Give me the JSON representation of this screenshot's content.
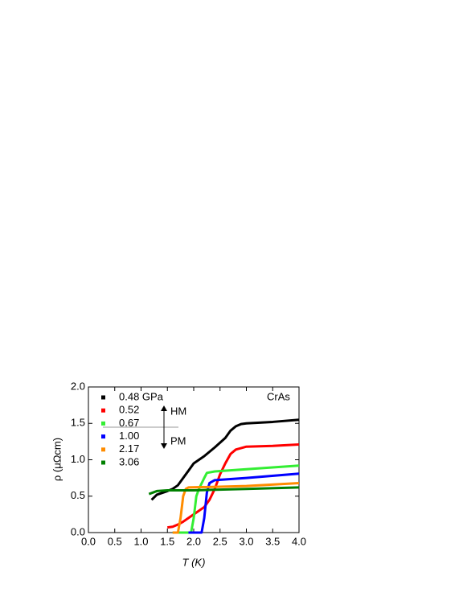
{
  "chart_data": {
    "type": "line",
    "xlabel": "T (K)",
    "ylabel": "ρ (μΩcm)",
    "annotations": [
      "CrAs",
      "HM",
      "PM"
    ],
    "xlim": [
      0,
      4
    ],
    "ylim": [
      0,
      2
    ],
    "xticks": [
      {
        "value": 0,
        "label": "0.0"
      },
      0.5,
      {
        "value": 1,
        "label": "1.0"
      },
      1.5,
      {
        "value": 2,
        "label": "2.0"
      },
      2.5,
      {
        "value": 3,
        "label": "3.0"
      },
      3.5,
      {
        "value": 4,
        "label": "4.0"
      }
    ],
    "yticks": [
      {
        "value": 0,
        "label": "0.0"
      },
      0.5,
      {
        "value": 1,
        "label": "1.0"
      },
      1.5,
      {
        "value": 2,
        "label": "2.0"
      }
    ],
    "legend": "upper left",
    "series": [
      {
        "name": "0.48 GPa",
        "color": "#000000",
        "x": [
          1.2,
          1.3,
          1.5,
          1.6,
          1.7,
          1.8,
          1.9,
          2.0,
          2.2,
          2.4,
          2.6,
          2.7,
          2.8,
          2.9,
          3.0,
          3.5,
          4.0
        ],
        "values": [
          0.45,
          0.52,
          0.57,
          0.6,
          0.65,
          0.75,
          0.85,
          0.95,
          1.05,
          1.17,
          1.3,
          1.4,
          1.46,
          1.49,
          1.5,
          1.52,
          1.55
        ]
      },
      {
        "name": "0.52",
        "color": "#ff0000",
        "x": [
          1.5,
          1.6,
          1.7,
          1.8,
          1.9,
          2.0,
          2.1,
          2.2,
          2.3,
          2.4,
          2.5,
          2.6,
          2.7,
          2.8,
          3.0,
          3.5,
          4.0
        ],
        "values": [
          0.07,
          0.08,
          0.11,
          0.15,
          0.2,
          0.25,
          0.3,
          0.35,
          0.45,
          0.6,
          0.8,
          0.95,
          1.08,
          1.14,
          1.18,
          1.19,
          1.21
        ]
      },
      {
        "name": "0.67",
        "color": "#33ee33",
        "x": [
          1.6,
          1.95,
          2.0,
          2.05,
          2.1,
          2.2,
          2.25,
          2.4,
          3.0,
          4.0
        ],
        "values": [
          0,
          0,
          0.2,
          0.5,
          0.6,
          0.75,
          0.82,
          0.84,
          0.87,
          0.92
        ]
      },
      {
        "name": "1.00",
        "color": "#0000ff",
        "x": [
          1.9,
          2.15,
          2.2,
          2.25,
          2.3,
          2.4,
          3.0,
          4.0
        ],
        "values": [
          0,
          0,
          0.2,
          0.55,
          0.68,
          0.72,
          0.75,
          0.81
        ]
      },
      {
        "name": "2.17",
        "color": "#ff8c00",
        "x": [
          1.6,
          1.7,
          1.75,
          1.8,
          1.85,
          1.9,
          2.5,
          3.0,
          4.0
        ],
        "values": [
          0,
          0,
          0.2,
          0.5,
          0.6,
          0.62,
          0.63,
          0.64,
          0.68
        ]
      },
      {
        "name": "3.06",
        "color": "#008000",
        "x": [
          1.15,
          1.3,
          1.5,
          2.0,
          3.0,
          4.0
        ],
        "values": [
          0.53,
          0.57,
          0.58,
          0.58,
          0.6,
          0.62
        ]
      }
    ]
  }
}
